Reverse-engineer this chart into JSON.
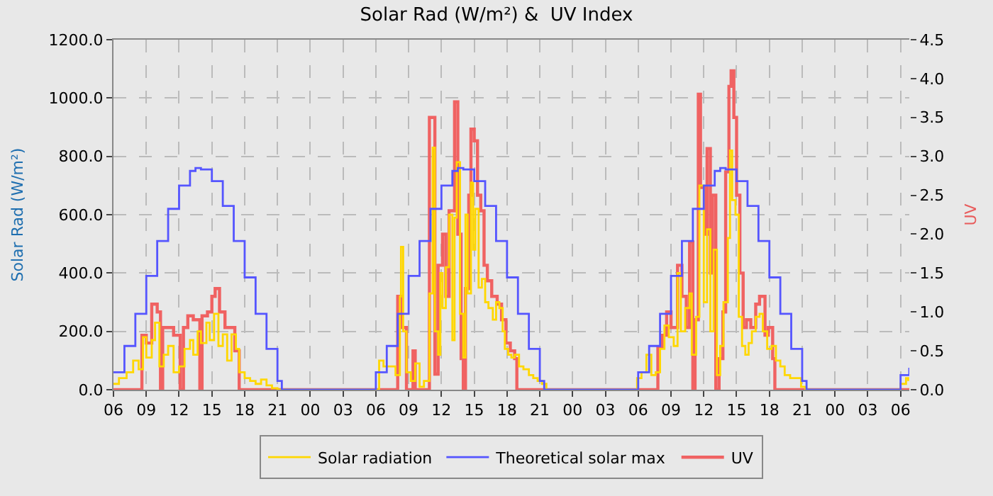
{
  "chart_data": {
    "type": "step",
    "title": "Solar Rad (W/m²) &  UV Index",
    "ylabel": "Solar Rad (W/m²)",
    "y2label": "UV",
    "xlim": [
      6,
      78.8
    ],
    "xticks": [
      {
        "value": 6,
        "label": "06"
      },
      {
        "value": 9,
        "label": "09"
      },
      {
        "value": 12,
        "label": "12"
      },
      {
        "value": 15,
        "label": "15"
      },
      {
        "value": 18,
        "label": "18"
      },
      {
        "value": 21,
        "label": "21"
      },
      {
        "value": 24,
        "label": "00"
      },
      {
        "value": 27,
        "label": "03"
      },
      {
        "value": 30,
        "label": "06"
      },
      {
        "value": 33,
        "label": "09"
      },
      {
        "value": 36,
        "label": "12"
      },
      {
        "value": 39,
        "label": "15"
      },
      {
        "value": 42,
        "label": "18"
      },
      {
        "value": 45,
        "label": "21"
      },
      {
        "value": 48,
        "label": "00"
      },
      {
        "value": 51,
        "label": "03"
      },
      {
        "value": 54,
        "label": "06"
      },
      {
        "value": 57,
        "label": "09"
      },
      {
        "value": 60,
        "label": "12"
      },
      {
        "value": 63,
        "label": "15"
      },
      {
        "value": 66,
        "label": "18"
      },
      {
        "value": 69,
        "label": "21"
      },
      {
        "value": 72,
        "label": "00"
      },
      {
        "value": 75,
        "label": "03"
      },
      {
        "value": 78,
        "label": "06"
      }
    ],
    "ylim": [
      0,
      1200
    ],
    "yticks": [
      {
        "value": 0,
        "label": "0.0"
      },
      {
        "value": 200,
        "label": "200.0"
      },
      {
        "value": 400,
        "label": "400.0"
      },
      {
        "value": 600,
        "label": "600.0"
      },
      {
        "value": 800,
        "label": "800.0"
      },
      {
        "value": 1000,
        "label": "1000.0"
      },
      {
        "value": 1200,
        "label": "1200.0"
      }
    ],
    "y2lim": [
      0,
      4.5
    ],
    "y2ticks": [
      {
        "value": 0,
        "label": "0.0"
      },
      {
        "value": 0.5,
        "label": "0.5"
      },
      {
        "value": 1,
        "label": "1.0"
      },
      {
        "value": 1.5,
        "label": "1.5"
      },
      {
        "value": 2,
        "label": "2.0"
      },
      {
        "value": 2.5,
        "label": "2.5"
      },
      {
        "value": 3,
        "label": "3.0"
      },
      {
        "value": 3.5,
        "label": "3.5"
      },
      {
        "value": 4,
        "label": "4.0"
      },
      {
        "value": 4.5,
        "label": "4.5"
      }
    ],
    "grid": true,
    "legend": "bottom",
    "line_style": "solid",
    "series": [
      {
        "name": "Solar radiation",
        "color": "#ffd700",
        "x": [
          6,
          6.5,
          7.2,
          7.8,
          8.3,
          8.7,
          9.0,
          9.5,
          9.8,
          10.2,
          10.6,
          11.0,
          11.5,
          12.0,
          12.5,
          13.0,
          13.3,
          13.7,
          14.0,
          14.5,
          14.8,
          15.2,
          15.6,
          16.0,
          16.4,
          16.8,
          17.2,
          17.5,
          18,
          18.5,
          19,
          19.5,
          20,
          20.5,
          21,
          29.5,
          30.3,
          30.7,
          31.8,
          32.2,
          32.3,
          32.5,
          32.8,
          33.2,
          33.6,
          34.0,
          34.4,
          34.9,
          35.2,
          35.4,
          35.7,
          35.9,
          36.1,
          36.4,
          36.7,
          37.0,
          37.2,
          37.4,
          37.7,
          38.0,
          38.2,
          38.4,
          38.7,
          38.9,
          39.1,
          39.4,
          39.7,
          40.0,
          40.3,
          40.7,
          41.0,
          41.3,
          41.6,
          41.8,
          42.1,
          42.4,
          42.7,
          43.1,
          43.5,
          44.0,
          44.4,
          44.8,
          45.2,
          45.6,
          53.1,
          53.9,
          54.3,
          54.75,
          55.2,
          55.6,
          56.0,
          56.4,
          56.8,
          57.25,
          57.6,
          57.9,
          58.3,
          58.7,
          58.9,
          59.3,
          59.6,
          60.0,
          60.3,
          60.6,
          60.9,
          61.2,
          61.5,
          61.8,
          62.2,
          62.4,
          62.6,
          62.9,
          63.2,
          63.5,
          63.8,
          64.1,
          64.4,
          64.75,
          65.1,
          65.4,
          65.8,
          66.2,
          66.6,
          67.0,
          67.4,
          67.9,
          68.3,
          68.9,
          69.3,
          77.5,
          78.0,
          78.5,
          78.7
        ],
        "values": [
          20,
          40,
          60,
          100,
          70,
          180,
          110,
          170,
          230,
          80,
          120,
          150,
          60,
          80,
          140,
          170,
          120,
          200,
          160,
          230,
          170,
          260,
          150,
          190,
          100,
          190,
          140,
          60,
          40,
          30,
          20,
          35,
          15,
          5,
          0,
          0,
          100,
          80,
          50,
          320,
          490,
          200,
          60,
          30,
          90,
          10,
          30,
          330,
          830,
          200,
          120,
          400,
          280,
          420,
          600,
          170,
          590,
          780,
          260,
          110,
          600,
          330,
          710,
          480,
          620,
          350,
          380,
          300,
          280,
          240,
          300,
          280,
          200,
          140,
          120,
          110,
          120,
          80,
          70,
          50,
          40,
          30,
          20,
          0,
          0,
          40,
          60,
          120,
          50,
          60,
          140,
          220,
          180,
          150,
          400,
          200,
          280,
          330,
          120,
          250,
          700,
          300,
          550,
          200,
          480,
          50,
          150,
          300,
          520,
          820,
          650,
          600,
          250,
          150,
          120,
          160,
          200,
          250,
          260,
          200,
          140,
          150,
          100,
          80,
          50,
          40,
          40,
          10,
          0,
          0,
          20,
          40,
          30
        ]
      },
      {
        "name": "Theoretical solar max",
        "color": "#5555ff",
        "x": [
          6,
          7,
          8,
          9,
          10,
          11,
          12,
          13,
          13.5,
          14,
          15,
          16,
          17,
          18,
          19,
          20,
          21,
          21.4,
          29.3,
          30,
          31,
          32,
          33,
          34,
          35,
          36,
          37,
          37.5,
          38,
          39,
          40,
          41,
          42,
          43,
          44,
          45,
          45.4,
          53.3,
          54,
          55,
          56,
          57,
          58,
          59,
          60,
          61,
          61.5,
          62,
          63,
          64,
          65,
          66,
          67,
          68,
          69,
          69.4,
          77.4,
          78,
          78.8
        ],
        "values": [
          60,
          150,
          260,
          390,
          510,
          620,
          700,
          750,
          760,
          755,
          715,
          630,
          510,
          385,
          260,
          140,
          30,
          0,
          0,
          60,
          150,
          260,
          390,
          510,
          620,
          700,
          750,
          760,
          755,
          715,
          630,
          510,
          385,
          260,
          140,
          30,
          0,
          0,
          60,
          150,
          260,
          390,
          510,
          620,
          700,
          750,
          760,
          755,
          715,
          630,
          510,
          385,
          260,
          140,
          30,
          0,
          0,
          50,
          75
        ]
      },
      {
        "name": "UV",
        "color": "#f06262",
        "axis": "y2",
        "x": [
          6,
          8.6,
          9.0,
          9.5,
          10.0,
          10.3,
          10.5,
          11.0,
          11.5,
          12.1,
          12.4,
          12.8,
          13.3,
          13.9,
          14.1,
          14.6,
          15.0,
          15.3,
          15.7,
          16.2,
          16.7,
          17.1,
          17.5,
          31.8,
          32.0,
          32.3,
          32.8,
          33.4,
          33.6,
          34.9,
          35.4,
          35.7,
          36.1,
          36.4,
          36.7,
          37.2,
          37.5,
          37.8,
          38.0,
          38.2,
          38.5,
          38.7,
          39.0,
          39.3,
          39.6,
          39.9,
          40.2,
          40.6,
          41.1,
          41.5,
          41.9,
          42.3,
          42.7,
          42.9,
          55.8,
          56.2,
          56.6,
          57.0,
          57.6,
          58.0,
          58.4,
          58.7,
          59.0,
          59.2,
          59.5,
          59.7,
          60.1,
          60.3,
          60.6,
          60.8,
          61.1,
          61.4,
          61.75,
          62.0,
          62.3,
          62.5,
          62.75,
          63.0,
          63.3,
          63.6,
          63.9,
          64.3,
          64.75,
          65.1,
          65.6,
          65.9,
          66.3,
          66.5,
          78.8
        ],
        "values": [
          0,
          0.7,
          0.6,
          1.1,
          1.0,
          0,
          0.8,
          0.8,
          0.7,
          0,
          0.8,
          0.95,
          0.9,
          0,
          0.95,
          1.0,
          1.2,
          1.3,
          1.0,
          0.8,
          0.8,
          0.5,
          0,
          0,
          1.2,
          0.8,
          0,
          0.5,
          0,
          3.5,
          0.2,
          1.6,
          2.0,
          1.2,
          2.3,
          3.7,
          2.0,
          0.4,
          0,
          1.3,
          2.5,
          3.35,
          3.2,
          2.5,
          2.3,
          1.6,
          1.4,
          1.2,
          1.1,
          0.9,
          0.6,
          0.5,
          0.4,
          0,
          0.55,
          0.7,
          1.0,
          0.8,
          1.6,
          1.2,
          0.8,
          1.9,
          0,
          0.9,
          3.8,
          2.6,
          2.0,
          3.1,
          1.5,
          2.5,
          0,
          0.4,
          1.0,
          2.8,
          3.9,
          4.1,
          3.5,
          2.5,
          1.5,
          0.8,
          0.9,
          0.8,
          1.1,
          1.2,
          0.7,
          0.8,
          0.4,
          0,
          0
        ]
      }
    ]
  }
}
